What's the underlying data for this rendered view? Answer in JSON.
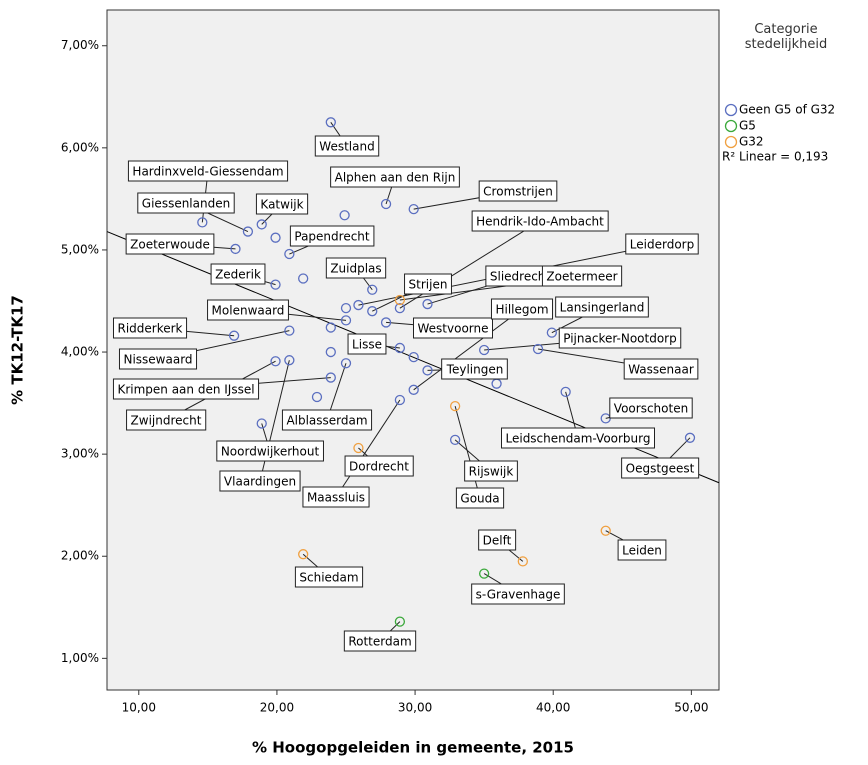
{
  "chart_data": {
    "type": "scatter",
    "xlabel": "% Hoogopgeleiden in gemeente, 2015",
    "ylabel": "% TK12-TK17",
    "legend_title": "Categorie stedelijkheid",
    "fit_label": "R² Linear = 0,193",
    "xlim": [
      7.7,
      52.0
    ],
    "ylim": [
      0.69,
      7.35
    ],
    "xticks": [
      {
        "value": 10,
        "label": "10,00"
      },
      {
        "value": 20,
        "label": "20,00"
      },
      {
        "value": 30,
        "label": "30,00"
      },
      {
        "value": 40,
        "label": "40,00"
      },
      {
        "value": 50,
        "label": "50,00"
      }
    ],
    "yticks": [
      {
        "value": 1,
        "label": "1,00%"
      },
      {
        "value": 2,
        "label": "2,00%"
      },
      {
        "value": 3,
        "label": "3,00%"
      },
      {
        "value": 4,
        "label": "4,00%"
      },
      {
        "value": 5,
        "label": "5,00%"
      },
      {
        "value": 6,
        "label": "6,00%"
      },
      {
        "value": 7,
        "label": "7,00%"
      }
    ],
    "fit": {
      "x": [
        7.7,
        52.0
      ],
      "y": [
        5.18,
        2.72
      ],
      "color": "#000000"
    },
    "series": [
      {
        "name": "Geen G5 of G32",
        "color": "#5b6fc0",
        "x": [
          23.9,
          27.9,
          29.9,
          24.9,
          14.6,
          17.9,
          18.9,
          19.9,
          20.9,
          17.0,
          19.9,
          21.9,
          26.9,
          25.9,
          28.9,
          30.9,
          25.0,
          25.0,
          26.9,
          27.9,
          23.9,
          20.9,
          16.9,
          28.9,
          23.9,
          35.0,
          38.9,
          39.9,
          29.9,
          19.9,
          20.9,
          25.0,
          30.9,
          23.9,
          35.9,
          29.9,
          40.9,
          22.9,
          28.9,
          18.9,
          43.8,
          32.9,
          49.9
        ],
        "values": [
          6.25,
          5.45,
          5.4,
          5.34,
          5.27,
          5.18,
          5.25,
          5.12,
          4.96,
          5.01,
          4.66,
          4.72,
          4.61,
          4.46,
          4.43,
          4.47,
          4.43,
          4.31,
          4.4,
          4.29,
          4.24,
          4.21,
          4.16,
          4.04,
          4.0,
          4.02,
          4.03,
          4.19,
          3.95,
          3.91,
          3.92,
          3.89,
          3.82,
          3.75,
          3.69,
          3.63,
          3.61,
          3.56,
          3.53,
          3.3,
          3.35,
          3.14,
          3.16
        ],
        "labels": [
          "Westland",
          "Alphen aan den Rijn",
          "Cromstrijen",
          null,
          "Hardinxveld-Giessendam",
          "Giessenlanden",
          "Katwijk",
          null,
          "Papendrecht",
          "Zoeterwoude",
          "Zederik",
          null,
          "Zuidplas",
          "Leiderdorp",
          "Hendrik-Ido-Ambacht",
          "Sliedrecht",
          null,
          "Molenwaard",
          "Strijen",
          "Westvoorne",
          null,
          "Nissewaard",
          "Ridderkerk",
          "Lisse",
          null,
          "Pijnacker-Nootdorp",
          "Wassenaar",
          "Lansingerland",
          null,
          "Zwijndrecht",
          "Vlaardingen",
          "Alblasserdam",
          "Teylingen",
          "Krimpen aan den IJssel",
          null,
          "Hillegom",
          "Leidschendam-Voorburg",
          null,
          "Maassluis",
          "Noordwijkerhout",
          "Voorschoten",
          "Rijswijk",
          "Oegstgeest"
        ]
      },
      {
        "name": "G5",
        "color": "#3aa83a",
        "x": [
          35.0,
          28.9
        ],
        "values": [
          1.83,
          1.36
        ],
        "labels": [
          "s-Gravenhage",
          "Rotterdam"
        ]
      },
      {
        "name": "G32",
        "color": "#f0a040",
        "x": [
          28.9,
          32.9,
          25.9,
          21.9,
          37.8,
          43.8
        ],
        "values": [
          4.51,
          3.47,
          3.06,
          2.02,
          1.95,
          2.25
        ],
        "labels": [
          "Zoetermeer",
          "Gouda",
          "Dordrecht",
          "Schiedam",
          "Delft",
          "Leiden"
        ]
      }
    ]
  }
}
